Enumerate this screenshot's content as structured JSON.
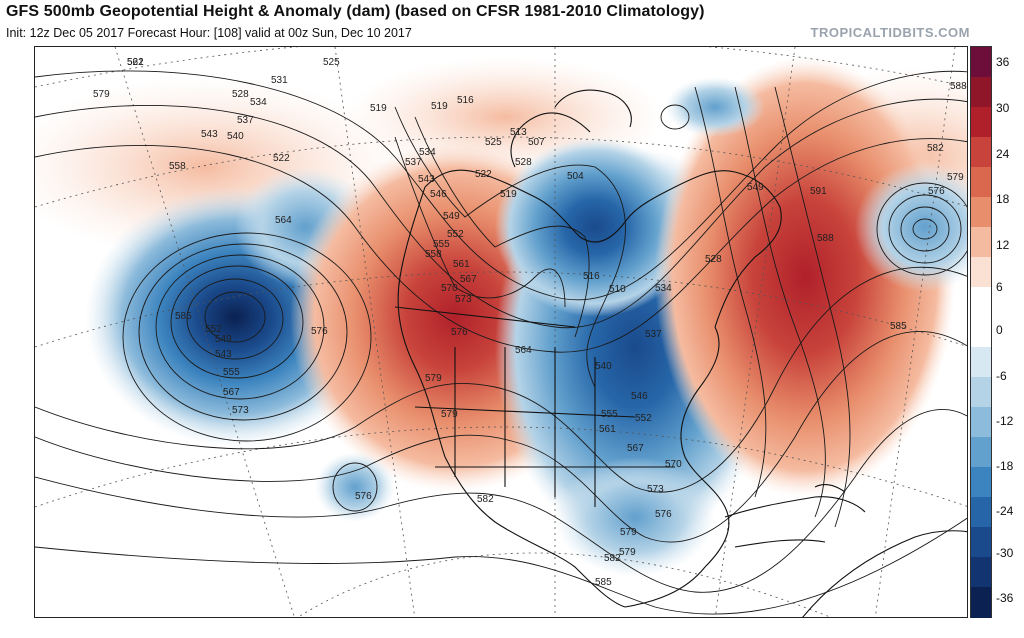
{
  "header": {
    "title": "GFS 500mb Geopotential Height & Anomaly (dam) (based on CFSR 1981-2010 Climatology)",
    "subtitle": "Init: 12z Dec 05 2017   Forecast Hour: [108]   valid at 00z Sun, Dec 10 2017",
    "brand": "TROPICALTIDBITS.COM"
  },
  "colorbar": {
    "ticks": [
      "36",
      "30",
      "24",
      "18",
      "12",
      "6",
      "0",
      "-6",
      "-12",
      "-18",
      "-24",
      "-30",
      "-36"
    ],
    "colors": [
      "#6d0e3a",
      "#8e1628",
      "#b0202a",
      "#c8433b",
      "#d9684f",
      "#e88e6c",
      "#f5bba0",
      "#fbe1d3",
      "#ffffff",
      "#ffffff",
      "#d8e8f2",
      "#b4d3e7",
      "#8dbbdb",
      "#62a0cd",
      "#3c84bf",
      "#2666a8",
      "#1a4a8c",
      "#123470",
      "#0b2152"
    ]
  },
  "map": {
    "contour_labels": [
      "561",
      "531",
      "525",
      "579",
      "528",
      "534",
      "537",
      "543",
      "540",
      "558",
      "522",
      "519",
      "519",
      "516",
      "522",
      "525",
      "528",
      "519",
      "504",
      "513",
      "507",
      "534",
      "537",
      "543",
      "546",
      "549",
      "552",
      "555",
      "558",
      "561",
      "567",
      "570",
      "573",
      "576",
      "564",
      "579",
      "579",
      "582",
      "576",
      "579",
      "585",
      "588",
      "591",
      "588",
      "585",
      "582",
      "579",
      "576",
      "549",
      "528",
      "516",
      "510",
      "534",
      "537",
      "540",
      "546",
      "552",
      "555",
      "561",
      "567",
      "570",
      "573",
      "576",
      "579",
      "582",
      "585",
      "552",
      "549",
      "543",
      "555",
      "567",
      "573",
      "576",
      "564",
      "522"
    ]
  }
}
